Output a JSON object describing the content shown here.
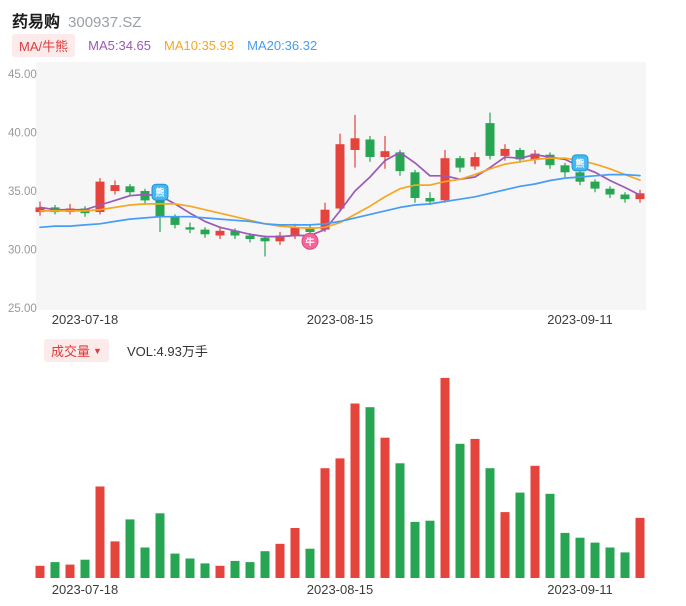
{
  "header": {
    "title": "药易购",
    "code": "300937.SZ"
  },
  "indicators": {
    "badge": "MA/牛熊",
    "ma5": {
      "label": "MA5:34.65",
      "color": "#9b59b6"
    },
    "ma10": {
      "label": "MA10:35.93",
      "color": "#f5a623"
    },
    "ma20": {
      "label": "MA20:36.32",
      "color": "#459df5"
    }
  },
  "volume_header": {
    "badge": "成交量",
    "dropdown": "▼",
    "vol": "VOL:4.93万手"
  },
  "colors": {
    "up": "#e5443c",
    "down": "#27a552",
    "ma5": "#9b59b6",
    "ma10": "#f5a623",
    "ma20": "#459df5",
    "plot_bg": "#f6f6f7",
    "axis_text": "#999999",
    "date_text": "#3c3c3c",
    "bear_badge": "#45b8f2",
    "bull_badge": "#f4679c"
  },
  "chart_data": [
    {
      "type": "candlestick",
      "title": "药易购 300937.SZ",
      "ylim": [
        24.8,
        46.0
      ],
      "yticks": [
        45,
        40,
        35,
        30,
        25
      ],
      "xticks": [
        {
          "index": 3,
          "label": "2023-07-18"
        },
        {
          "index": 20,
          "label": "2023-08-15"
        },
        {
          "index": 36,
          "label": "2023-09-11"
        }
      ],
      "candles": [
        {
          "o": 33.2,
          "h": 34.1,
          "l": 32.9,
          "c": 33.6
        },
        {
          "o": 33.6,
          "h": 33.8,
          "l": 33.0,
          "c": 33.2
        },
        {
          "o": 33.2,
          "h": 33.9,
          "l": 33.0,
          "c": 33.5
        },
        {
          "o": 33.5,
          "h": 33.7,
          "l": 32.8,
          "c": 33.1
        },
        {
          "o": 33.2,
          "h": 36.1,
          "l": 33.0,
          "c": 35.8
        },
        {
          "o": 35.0,
          "h": 35.9,
          "l": 34.7,
          "c": 35.5
        },
        {
          "o": 35.4,
          "h": 35.6,
          "l": 34.6,
          "c": 34.9
        },
        {
          "o": 35.0,
          "h": 35.2,
          "l": 33.8,
          "c": 34.2
        },
        {
          "o": 34.2,
          "h": 34.4,
          "l": 31.5,
          "c": 32.8
        },
        {
          "o": 32.8,
          "h": 33.0,
          "l": 31.8,
          "c": 32.1
        },
        {
          "o": 31.9,
          "h": 32.3,
          "l": 31.4,
          "c": 31.7
        },
        {
          "o": 31.7,
          "h": 31.9,
          "l": 31.0,
          "c": 31.3
        },
        {
          "o": 31.2,
          "h": 31.9,
          "l": 30.9,
          "c": 31.6
        },
        {
          "o": 31.6,
          "h": 31.8,
          "l": 30.9,
          "c": 31.2
        },
        {
          "o": 31.2,
          "h": 31.4,
          "l": 30.6,
          "c": 30.9
        },
        {
          "o": 31.0,
          "h": 31.2,
          "l": 29.4,
          "c": 30.7
        },
        {
          "o": 30.7,
          "h": 31.5,
          "l": 30.4,
          "c": 31.2
        },
        {
          "o": 31.2,
          "h": 32.2,
          "l": 30.9,
          "c": 31.9
        },
        {
          "o": 31.9,
          "h": 32.1,
          "l": 31.2,
          "c": 31.5
        },
        {
          "o": 31.7,
          "h": 34.0,
          "l": 31.5,
          "c": 33.4
        },
        {
          "o": 33.5,
          "h": 39.9,
          "l": 33.3,
          "c": 39.0
        },
        {
          "o": 38.5,
          "h": 41.5,
          "l": 37.0,
          "c": 39.5
        },
        {
          "o": 39.4,
          "h": 39.7,
          "l": 37.5,
          "c": 37.9
        },
        {
          "o": 37.9,
          "h": 39.7,
          "l": 36.9,
          "c": 38.4
        },
        {
          "o": 38.3,
          "h": 38.5,
          "l": 36.3,
          "c": 36.7
        },
        {
          "o": 36.6,
          "h": 36.8,
          "l": 34.0,
          "c": 34.4
        },
        {
          "o": 34.4,
          "h": 34.9,
          "l": 33.8,
          "c": 34.1
        },
        {
          "o": 34.2,
          "h": 38.5,
          "l": 34.0,
          "c": 37.8
        },
        {
          "o": 37.8,
          "h": 38.0,
          "l": 36.6,
          "c": 37.0
        },
        {
          "o": 37.1,
          "h": 38.3,
          "l": 36.8,
          "c": 37.9
        },
        {
          "o": 40.8,
          "h": 41.7,
          "l": 37.7,
          "c": 38.0
        },
        {
          "o": 38.0,
          "h": 39.0,
          "l": 37.6,
          "c": 38.6
        },
        {
          "o": 38.5,
          "h": 38.7,
          "l": 37.4,
          "c": 37.7
        },
        {
          "o": 37.7,
          "h": 38.5,
          "l": 37.3,
          "c": 38.2
        },
        {
          "o": 38.1,
          "h": 38.3,
          "l": 36.9,
          "c": 37.2
        },
        {
          "o": 37.2,
          "h": 37.4,
          "l": 36.2,
          "c": 36.6
        },
        {
          "o": 36.6,
          "h": 36.8,
          "l": 35.5,
          "c": 35.8
        },
        {
          "o": 35.8,
          "h": 36.0,
          "l": 34.9,
          "c": 35.2
        },
        {
          "o": 35.2,
          "h": 35.4,
          "l": 34.4,
          "c": 34.7
        },
        {
          "o": 34.7,
          "h": 34.9,
          "l": 34.0,
          "c": 34.3
        },
        {
          "o": 34.3,
          "h": 35.1,
          "l": 34.0,
          "c": 34.8
        }
      ],
      "ma5": [
        33.6,
        33.4,
        33.4,
        33.4,
        33.8,
        34.2,
        34.6,
        34.7,
        34.6,
        33.9,
        33.1,
        32.4,
        31.9,
        31.6,
        31.3,
        31.1,
        31.1,
        31.2,
        31.2,
        31.7,
        33.3,
        35.0,
        36.2,
        37.6,
        38.3,
        37.4,
        36.3,
        36.3,
        36.0,
        36.2,
        37.0,
        37.9,
        37.8,
        38.1,
        37.9,
        37.7,
        37.1,
        36.6,
        35.9,
        35.3,
        34.65
      ],
      "ma10": [
        33.3,
        33.3,
        33.3,
        33.3,
        33.4,
        33.6,
        33.8,
        33.9,
        33.9,
        33.9,
        33.7,
        33.4,
        33.1,
        32.8,
        32.5,
        32.2,
        32.0,
        31.9,
        31.8,
        31.9,
        32.3,
        33.0,
        33.7,
        34.5,
        35.2,
        35.5,
        35.5,
        35.8,
        36.0,
        36.4,
        36.9,
        37.3,
        37.5,
        37.7,
        37.8,
        37.8,
        37.6,
        37.3,
        36.9,
        36.4,
        35.93
      ],
      "ma20": [
        31.9,
        32.0,
        32.0,
        32.1,
        32.2,
        32.4,
        32.6,
        32.7,
        32.8,
        32.8,
        32.8,
        32.7,
        32.6,
        32.5,
        32.4,
        32.2,
        32.1,
        32.1,
        32.1,
        32.2,
        32.4,
        32.7,
        33.0,
        33.3,
        33.6,
        33.8,
        33.9,
        34.1,
        34.3,
        34.5,
        34.8,
        35.1,
        35.4,
        35.6,
        35.9,
        36.1,
        36.2,
        36.3,
        36.4,
        36.4,
        36.32
      ],
      "markers": [
        {
          "index": 8,
          "type": "bear",
          "price": 34.9,
          "glyph": "熊"
        },
        {
          "index": 18,
          "type": "bull",
          "price": 30.7,
          "glyph": "牛"
        },
        {
          "index": 36,
          "type": "bear",
          "price": 37.4,
          "glyph": "熊"
        }
      ]
    },
    {
      "type": "bar",
      "ylabel": "成交量(万手)",
      "latest_label": "VOL:4.93万手",
      "values": [
        1.0,
        1.3,
        1.1,
        1.5,
        7.5,
        3.0,
        4.8,
        2.5,
        5.3,
        2.0,
        1.6,
        1.2,
        1.0,
        1.4,
        1.3,
        2.2,
        2.8,
        4.1,
        2.4,
        9.0,
        9.8,
        14.3,
        14.0,
        11.5,
        9.4,
        4.6,
        4.7,
        16.4,
        11.0,
        11.4,
        9.0,
        5.4,
        7.0,
        9.2,
        6.9,
        3.7,
        3.3,
        2.9,
        2.5,
        2.1,
        4.93
      ],
      "color_rule": "follows candle direction",
      "xticks": [
        {
          "index": 3,
          "label": "2023-07-18"
        },
        {
          "index": 20,
          "label": "2023-08-15"
        },
        {
          "index": 36,
          "label": "2023-09-11"
        }
      ]
    }
  ]
}
